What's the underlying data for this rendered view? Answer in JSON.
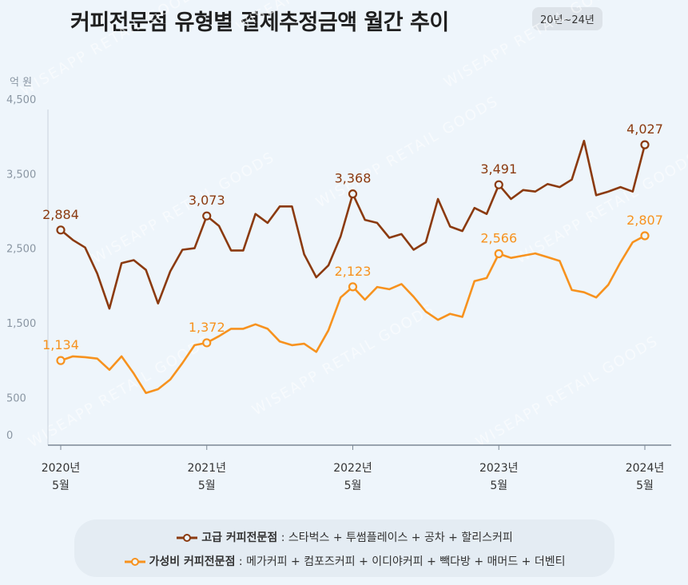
{
  "header": {
    "title": "커피전문점 유형별 결제추정금액 월간 추이",
    "badge": "20년~24년"
  },
  "watermark": "WISEAPP RETAIL GOODS",
  "legend": {
    "premium": {
      "name": "고급 커피전문점",
      "members": ": 스타벅스 + 투썸플레이스 + 공차 + 할리스커피"
    },
    "value": {
      "name": "가성비 커피전문점",
      "members": ": 메가커피 + 컴포즈커피 + 이디야커피 + 빽다방 + 매머드 + 더벤티"
    }
  },
  "colors": {
    "premium": "#8b3a0f",
    "value": "#f7921e",
    "axis": "#9aa6b2",
    "grid": "#c9d3dd"
  },
  "chart_data": {
    "type": "line",
    "title": "커피전문점 유형별 결제추정금액 월간 추이",
    "ylabel": "억 원",
    "ylim": [
      0,
      4500
    ],
    "yticks": [
      0,
      500,
      1500,
      2500,
      3500,
      4500
    ],
    "ytick_labels": [
      "0",
      "500",
      "1,500",
      "2,500",
      "3,500",
      "4,500"
    ],
    "x_count": 49,
    "x_ticks": [
      {
        "index": 0,
        "year": "2020년",
        "month": "5월"
      },
      {
        "index": 12,
        "year": "2021년",
        "month": "5월"
      },
      {
        "index": 24,
        "year": "2022년",
        "month": "5월"
      },
      {
        "index": 36,
        "year": "2023년",
        "month": "5월"
      },
      {
        "index": 48,
        "year": "2024년",
        "month": "5월"
      }
    ],
    "series": [
      {
        "name": "고급 커피전문점",
        "key": "premium",
        "values": [
          2884,
          2750,
          2650,
          2300,
          1830,
          2440,
          2480,
          2350,
          1900,
          2330,
          2620,
          2640,
          3073,
          2940,
          2610,
          2610,
          3100,
          2980,
          3200,
          3200,
          2560,
          2250,
          2410,
          2800,
          3368,
          3020,
          2980,
          2780,
          2830,
          2620,
          2720,
          3300,
          2930,
          2870,
          3180,
          3100,
          3491,
          3300,
          3420,
          3400,
          3500,
          3460,
          3560,
          4080,
          3350,
          3400,
          3460,
          3400,
          4027
        ],
        "labeled": [
          {
            "index": 0,
            "label": "2,884"
          },
          {
            "index": 12,
            "label": "3,073"
          },
          {
            "index": 24,
            "label": "3,368"
          },
          {
            "index": 36,
            "label": "3,491"
          },
          {
            "index": 48,
            "label": "4,027"
          }
        ]
      },
      {
        "name": "가성비 커피전문점",
        "key": "value",
        "values": [
          1134,
          1190,
          1180,
          1160,
          1010,
          1190,
          960,
          700,
          750,
          880,
          1100,
          1340,
          1372,
          1460,
          1560,
          1560,
          1620,
          1560,
          1390,
          1340,
          1360,
          1250,
          1540,
          1980,
          2123,
          1950,
          2120,
          2090,
          2160,
          1990,
          1790,
          1680,
          1760,
          1720,
          2200,
          2240,
          2566,
          2510,
          2540,
          2570,
          2520,
          2470,
          2080,
          2050,
          1980,
          2150,
          2450,
          2720,
          2807
        ],
        "labeled": [
          {
            "index": 0,
            "label": "1,134"
          },
          {
            "index": 12,
            "label": "1,372"
          },
          {
            "index": 24,
            "label": "2,123"
          },
          {
            "index": 36,
            "label": "2,566"
          },
          {
            "index": 48,
            "label": "2,807"
          }
        ]
      }
    ]
  }
}
